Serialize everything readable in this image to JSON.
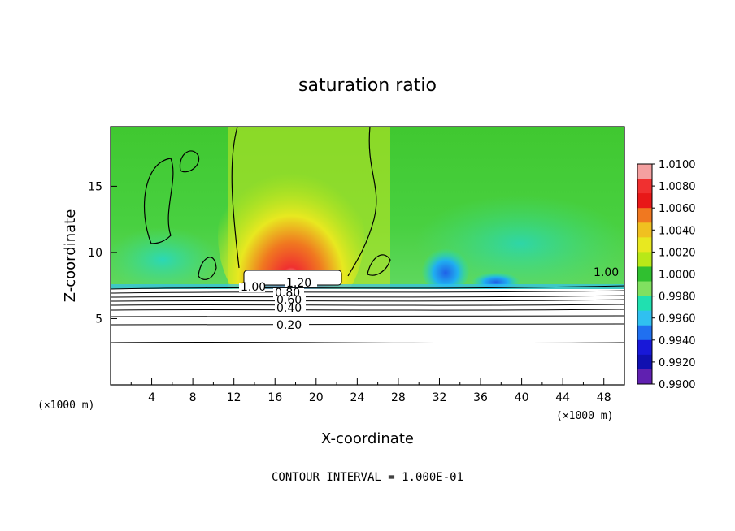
{
  "chart_data": {
    "type": "heatmap",
    "title": "saturation ratio",
    "xlabel": "X-coordinate",
    "ylabel": "Z-coordinate",
    "x_unit_left": "(×1000 m)",
    "x_unit_right": "(×1000 m)",
    "x_ticks": [
      "4",
      "8",
      "12",
      "16",
      "20",
      "24",
      "28",
      "32",
      "36",
      "40",
      "44",
      "48"
    ],
    "y_ticks": [
      "5",
      "10",
      "15"
    ],
    "xlim": [
      0,
      50
    ],
    "ylim": [
      0,
      19.5
    ],
    "colorbar": {
      "labels": [
        "1.0100",
        "1.0080",
        "1.0060",
        "1.0040",
        "1.0020",
        "1.0000",
        "0.9980",
        "0.9960",
        "0.9940",
        "0.9920",
        "0.9900"
      ],
      "range": [
        0.99,
        1.01
      ],
      "colors": [
        "#f4a0a0",
        "#f03030",
        "#e81818",
        "#f07820",
        "#f0c020",
        "#e8e820",
        "#b8e818",
        "#30c030",
        "#80e060",
        "#20e0b0",
        "#30c0f0",
        "#2070f0",
        "#1818d8",
        "#1010b0",
        "#6020b0"
      ]
    },
    "contour_levels_labeled": [
      "1.20",
      "1.00",
      "0.80",
      "0.60",
      "0.40",
      "0.20",
      "1.00"
    ],
    "contour_interval_text": "CONTOUR INTERVAL = 1.000E-01"
  }
}
